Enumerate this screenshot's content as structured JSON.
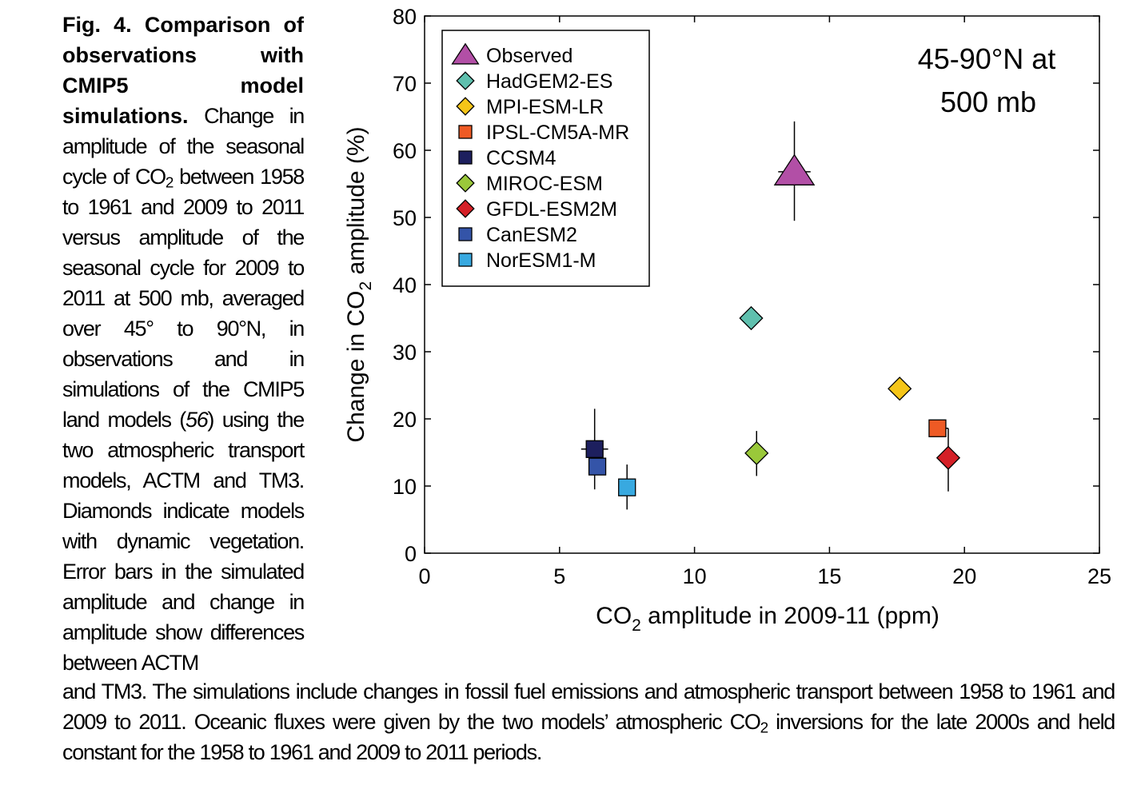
{
  "caption": {
    "fig_label": "Fig. 4. Comparison of observations with CMIP5 model simulations.",
    "text_a": " Change in amplitude of the seasonal cycle of CO",
    "sub_a": "2",
    "text_b": " between 1958 to 1961 and 2009 to 2011 versus amplitude of the seasonal cycle for 2009 to 2011 at 500 mb, averaged over 45° to 90°N, in observations and in simulations of the CMIP5 land models (",
    "ref": "56",
    "text_c": ") using the two atmospheric transport models, ACTM and TM3. Diamonds indicate models with dynamic vegetation. Error bars in the simulated amplitude and change in amplitude show differences between ACTM",
    "bottom_a": "and TM3. The simulations include changes in fossil fuel emissions and atmospheric transport between 1958 to 1961 and 2009 to 2011. Oceanic fluxes were given by the two models’ atmospheric CO",
    "bottom_sub": "2",
    "bottom_b": " inversions for the late 2000s and held constant for the 1958 to 1961 and 2009 to 2011 periods."
  },
  "chart_data": {
    "type": "scatter",
    "annotation": [
      "45-90°N at",
      "500 mb"
    ],
    "xlabel": "CO",
    "xlabel_sub": "2",
    "xlabel_rest": " amplitude in 2009-11 (ppm)",
    "ylabel": "Change in CO",
    "ylabel_sub": "2",
    "ylabel_rest": " amplitude (%)",
    "xlim": [
      0,
      25
    ],
    "ylim": [
      0,
      80
    ],
    "xticks": [
      0,
      5,
      10,
      15,
      20,
      25
    ],
    "yticks": [
      0,
      10,
      20,
      30,
      40,
      50,
      60,
      70,
      80
    ],
    "grid": false,
    "legend_position": "top-left",
    "series": [
      {
        "name": "Observed",
        "marker": "triangle",
        "color": "#b24fa6",
        "x": 13.7,
        "y": 56.8,
        "xerr": [
          13.1,
          14.3
        ],
        "yerr": [
          49.5,
          64.3
        ]
      },
      {
        "name": "HadGEM2-ES",
        "marker": "diamond",
        "color": "#5fc0ae",
        "x": 12.1,
        "y": 35.0
      },
      {
        "name": "MPI-ESM-LR",
        "marker": "diamond",
        "color": "#f5c518",
        "x": 17.6,
        "y": 24.5
      },
      {
        "name": "IPSL-CM5A-MR",
        "marker": "square",
        "color": "#ee5a24",
        "x": 19.0,
        "y": 18.6,
        "xerr": [
          18.7,
          19.4
        ]
      },
      {
        "name": "CCSM4",
        "marker": "square",
        "color": "#1d1f5e",
        "x": 6.3,
        "y": 15.5,
        "xerr": [
          5.8,
          6.8
        ],
        "yerr": [
          9.5,
          21.5
        ]
      },
      {
        "name": "MIROC-ESM",
        "marker": "diamond",
        "color": "#9ac83a",
        "x": 12.3,
        "y": 14.9,
        "yerr": [
          11.5,
          18.2
        ]
      },
      {
        "name": "GFDL-ESM2M",
        "marker": "diamond",
        "color": "#d42027",
        "x": 19.4,
        "y": 14.2,
        "yerr": [
          9.2,
          18.6
        ]
      },
      {
        "name": "CanESM2",
        "marker": "square",
        "color": "#3454a8",
        "x": 6.4,
        "y": 12.9
      },
      {
        "name": "NorESM1-M",
        "marker": "square",
        "color": "#38a9e0",
        "x": 7.5,
        "y": 9.8,
        "yerr": [
          6.5,
          13.2
        ]
      }
    ]
  }
}
